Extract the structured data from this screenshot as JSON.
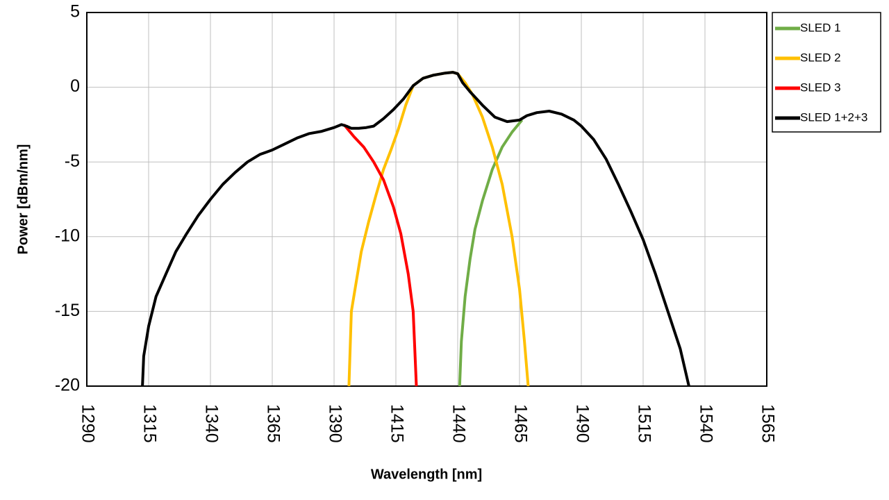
{
  "chart_data": {
    "type": "line",
    "xlabel": "Wavelength [nm]",
    "ylabel": "Power [dBm/nm]",
    "xlim": [
      1290,
      1565
    ],
    "xticks": [
      1290,
      1315,
      1340,
      1365,
      1390,
      1415,
      1440,
      1465,
      1490,
      1515,
      1540,
      1565
    ],
    "ylim": [
      -20,
      5
    ],
    "yticks": [
      5,
      0,
      -5,
      -10,
      -15,
      -20
    ],
    "grid": true,
    "legend": "right",
    "series": [
      {
        "name": "SLED 1",
        "color": "#70ad47",
        "x": [
          1440.8,
          1441.5,
          1443,
          1445,
          1447,
          1450,
          1454,
          1458,
          1462,
          1466
        ],
        "values": [
          -20,
          -17,
          -14,
          -11.5,
          -9.5,
          -7.6,
          -5.5,
          -4.0,
          -3.0,
          -2.2
        ]
      },
      {
        "name": "SLED 2",
        "color": "#ffc000",
        "x": [
          1396,
          1397,
          1399,
          1401,
          1404,
          1407,
          1410,
          1413,
          1416,
          1419,
          1422,
          1426,
          1430,
          1435,
          1438,
          1440,
          1443,
          1446,
          1450,
          1454,
          1458,
          1462,
          1465,
          1467,
          1468.5
        ],
        "values": [
          -20,
          -15,
          -13,
          -11,
          -9,
          -7.2,
          -5.5,
          -4.2,
          -2.8,
          -1.2,
          0.1,
          0.6,
          0.8,
          0.95,
          1.0,
          0.9,
          0.3,
          -0.5,
          -2.0,
          -4.0,
          -6.5,
          -10,
          -13.5,
          -17,
          -20
        ]
      },
      {
        "name": "SLED 3",
        "color": "#ff0000",
        "x": [
          1394,
          1398,
          1402,
          1406,
          1410,
          1414,
          1417,
          1420,
          1422,
          1423.3
        ],
        "values": [
          -2.5,
          -3.3,
          -4.0,
          -5.0,
          -6.2,
          -8.0,
          -9.8,
          -12.5,
          -15,
          -20
        ]
      },
      {
        "name": "SLED 1+2+3",
        "color": "#000000",
        "x": [
          1312.5,
          1313,
          1315,
          1318,
          1322,
          1326,
          1330,
          1335,
          1340,
          1345,
          1350,
          1355,
          1360,
          1365,
          1370,
          1375,
          1380,
          1385,
          1390,
          1393,
          1395,
          1397,
          1400,
          1403,
          1406,
          1410,
          1414,
          1418,
          1422,
          1426,
          1430,
          1435,
          1438,
          1440,
          1442,
          1445,
          1450,
          1455,
          1460,
          1465,
          1468,
          1472,
          1477,
          1482,
          1487,
          1490,
          1495,
          1500,
          1505,
          1510,
          1515,
          1520,
          1525,
          1530,
          1533.5
        ],
        "values": [
          -20,
          -18,
          -16,
          -14,
          -12.5,
          -11,
          -9.9,
          -8.6,
          -7.5,
          -6.5,
          -5.7,
          -5.0,
          -4.5,
          -4.2,
          -3.8,
          -3.4,
          -3.1,
          -2.95,
          -2.7,
          -2.5,
          -2.6,
          -2.75,
          -2.75,
          -2.7,
          -2.6,
          -2.1,
          -1.5,
          -0.8,
          0.1,
          0.6,
          0.8,
          0.95,
          1.0,
          0.9,
          0.3,
          -0.3,
          -1.2,
          -2.0,
          -2.3,
          -2.2,
          -1.9,
          -1.7,
          -1.6,
          -1.8,
          -2.2,
          -2.6,
          -3.5,
          -4.8,
          -6.5,
          -8.3,
          -10.2,
          -12.5,
          -15,
          -17.5,
          -20
        ]
      }
    ]
  }
}
